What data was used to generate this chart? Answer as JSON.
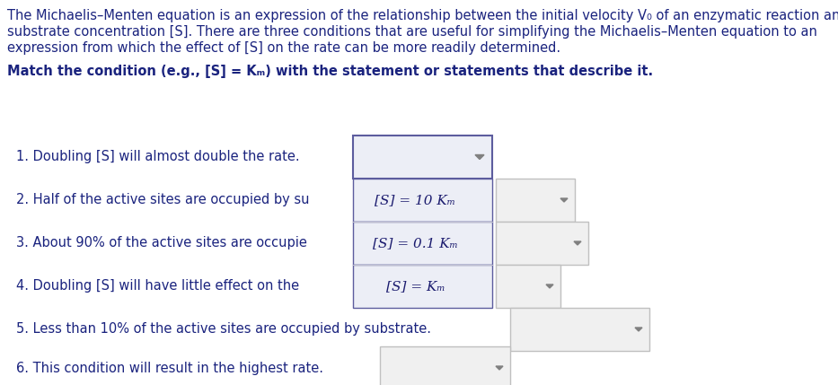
{
  "bg_color": "#ffffff",
  "fig_width": 9.33,
  "fig_height": 4.29,
  "dpi": 100,
  "text_color": "#1a237e",
  "title_lines": [
    "The Michaelis–Menten equation is an expression of the relationship between the initial velocity V₀ of an enzymatic reaction and",
    "substrate concentration [S]. There are three conditions that are useful for simplifying the Michaelis–Menten equation to an",
    "expression from which the effect of [S] on the rate can be more readily determined."
  ],
  "match_line": "Match the condition (e.g., [S] = Kₘ) with the statement or statements that describe it.",
  "item_texts": [
    "1. Doubling [S] will almost double the rate.",
    "2. Half of the active sites are occupied by su",
    "3. About 90% of the active sites are occupie",
    "4. Doubling [S] will have little effect on the",
    "5. Less than 10% of the active sites are occupied by substrate.",
    "6. This condition will result in the highest rate."
  ],
  "dropdown_labels": [
    "[S] = 10 Kₘ",
    "[S] = 0.1 Kₘ",
    "[S] = Kₘ"
  ],
  "open_dropdown_border": "#5c5c9e",
  "open_dropdown_fill": "#eceef6",
  "closed_dropdown_border": "#c0c0c0",
  "closed_dropdown_fill": "#f0f0f0",
  "arrow_color": "#808080",
  "label_color": "#1a1a6e",
  "item_fontsize": 10.5,
  "label_fontsize": 11,
  "title_fontsize": 10.5
}
